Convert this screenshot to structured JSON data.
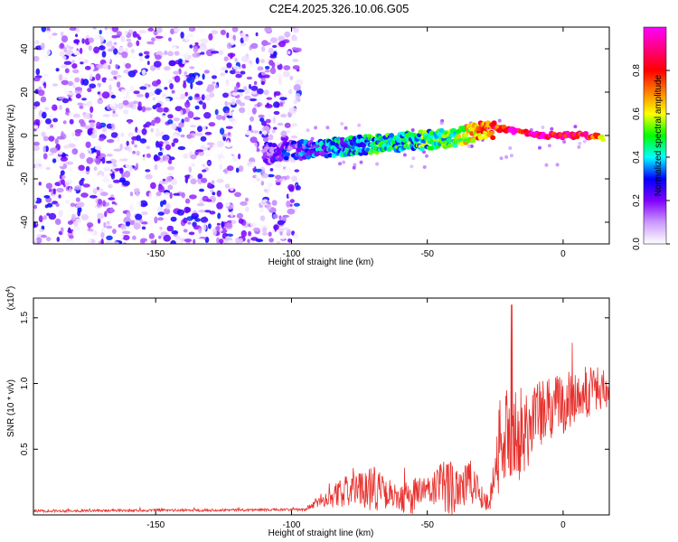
{
  "title": "C2E4.2025.326.10.06.G05",
  "chart_data": [
    {
      "type": "heatmap",
      "xlabel": "Height of straight line (km)",
      "ylabel": "Frequency (Hz)",
      "xlim": [
        -195,
        17
      ],
      "ylim": [
        -50,
        50
      ],
      "xticks": [
        -150,
        -100,
        -50,
        0
      ],
      "yticks": [
        -40,
        -20,
        0,
        20,
        40
      ],
      "colorbar": {
        "label": "Normalized spectral amplitude",
        "range": [
          0,
          1
        ],
        "ticks": [
          "0.0",
          "0.2",
          "0.4",
          "0.6",
          "0.8"
        ],
        "colors": [
          "#ffffff",
          "#cc99ff",
          "#8000ff",
          "#0000ff",
          "#00ffff",
          "#00ff00",
          "#ffff00",
          "#ff8000",
          "#ff0000",
          "#ff0080",
          "#ff00ff"
        ]
      },
      "signal_track": {
        "x": [
          -110,
          -100,
          -90,
          -80,
          -70,
          -60,
          -50,
          -40,
          -30,
          -25,
          -20,
          -10,
          0,
          10,
          15
        ],
        "y": [
          -8,
          -7,
          -6,
          -5,
          -4,
          -3,
          -2,
          -1,
          2,
          3,
          3,
          0,
          0,
          0,
          -1
        ],
        "amplitude": [
          0.15,
          0.2,
          0.3,
          0.35,
          0.4,
          0.4,
          0.45,
          0.5,
          0.7,
          0.8,
          0.85,
          0.9,
          0.85,
          0.85,
          0.6
        ]
      }
    },
    {
      "type": "line",
      "xlabel": "Height of straight line (km)",
      "ylabel": "SNR (10 * v/v)",
      "y_multiplier": "(x10",
      "y_multiplier_exp": "4",
      "y_multiplier_close": ")",
      "xlim": [
        -195,
        17
      ],
      "ylim": [
        0,
        1.65
      ],
      "xticks": [
        -150,
        -100,
        -50,
        0
      ],
      "yticks": [
        "0.5",
        "1.0",
        "1.5"
      ],
      "color": "#e8302c",
      "envelope": {
        "x": [
          -195,
          -95,
          -90,
          -80,
          -75,
          -70,
          -65,
          -60,
          -55,
          -50,
          -45,
          -40,
          -35,
          -30,
          -27,
          -25,
          -22,
          -20,
          -18,
          -15,
          -12,
          -10,
          -5,
          0,
          5,
          10,
          15
        ],
        "mean": [
          0.03,
          0.04,
          0.1,
          0.18,
          0.2,
          0.22,
          0.15,
          0.12,
          0.15,
          0.18,
          0.2,
          0.22,
          0.25,
          0.15,
          0.08,
          0.4,
          0.6,
          0.7,
          0.65,
          0.6,
          0.7,
          0.75,
          0.8,
          0.85,
          0.9,
          0.95,
          0.95
        ],
        "amp": [
          0.01,
          0.01,
          0.05,
          0.12,
          0.12,
          0.2,
          0.1,
          0.1,
          0.15,
          0.12,
          0.2,
          0.25,
          0.2,
          0.12,
          0.05,
          0.3,
          0.4,
          0.5,
          0.4,
          0.35,
          0.3,
          0.3,
          0.25,
          0.25,
          0.2,
          0.2,
          0.15
        ]
      }
    }
  ]
}
